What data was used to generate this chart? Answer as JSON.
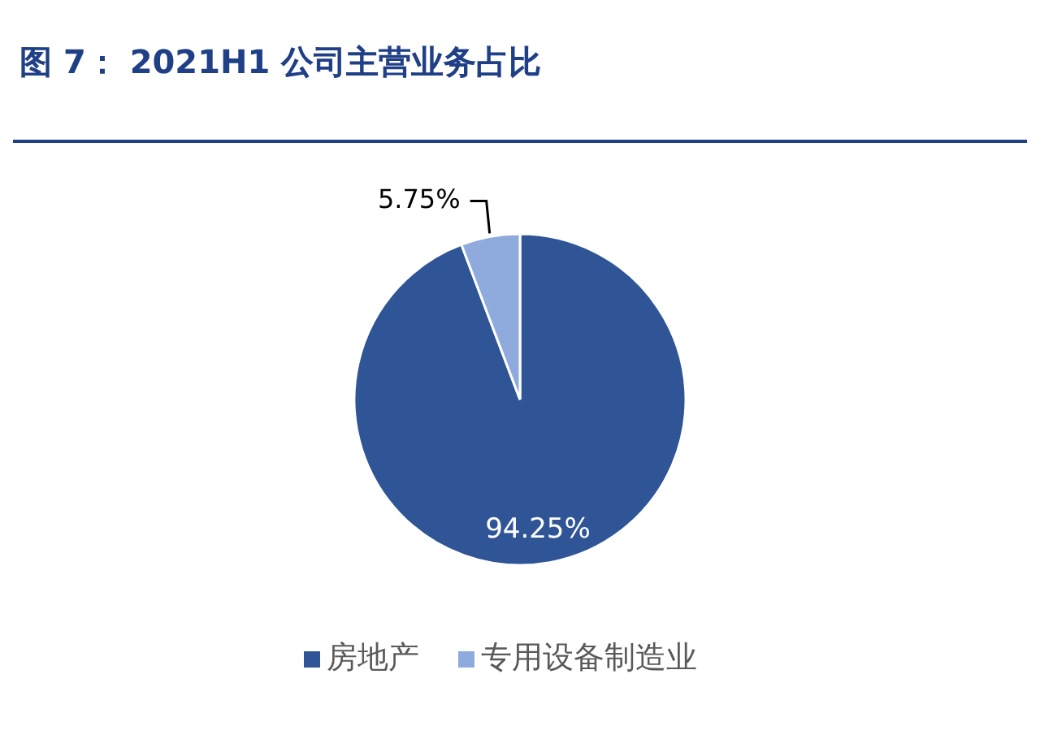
{
  "chart_data": {
    "type": "pie",
    "title": "图 7：  2021H1 公司主营业务占比",
    "categories": [
      "房地产",
      "专用设备制造业"
    ],
    "values": [
      94.25,
      5.75
    ],
    "colors": [
      "#2f5597",
      "#8faadc"
    ],
    "value_labels": [
      "94.25%",
      "5.75%"
    ],
    "legend": "bottom"
  }
}
